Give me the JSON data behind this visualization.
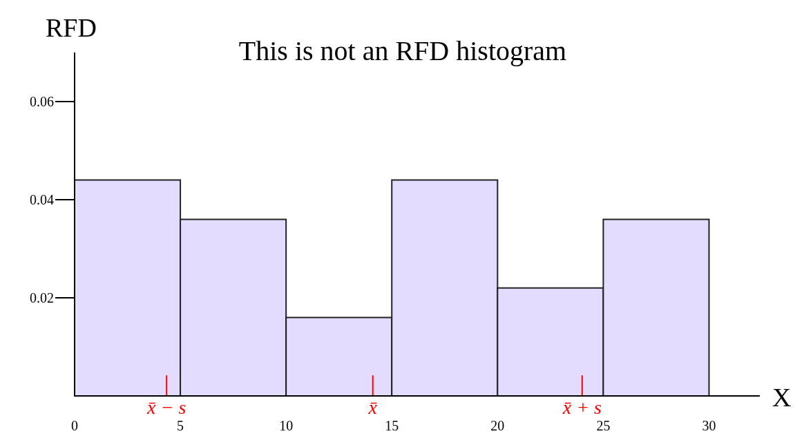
{
  "chart_data": {
    "type": "histogram",
    "title": "This is not an RFD histogram",
    "xlabel": "X",
    "ylabel": "RFD",
    "bins": [
      0,
      5,
      10,
      15,
      20,
      25,
      30
    ],
    "values": [
      0.044,
      0.036,
      0.016,
      0.044,
      0.022,
      0.036
    ],
    "color": "#e4dcff",
    "xlim": [
      0,
      32.4
    ],
    "xticks": [
      0,
      5,
      10,
      15,
      20,
      25,
      30
    ],
    "ylim": [
      0,
      0.07
    ],
    "yticks": [
      0.02,
      0.04,
      0.06
    ],
    "grid": false,
    "annotations": [
      {
        "text": "x̄ − s",
        "x": 4.35,
        "y": 0
      },
      {
        "text": "x̄",
        "x": 14.1,
        "y": 0
      },
      {
        "text": "x̄ + s",
        "x": 24,
        "y": 0
      }
    ]
  }
}
